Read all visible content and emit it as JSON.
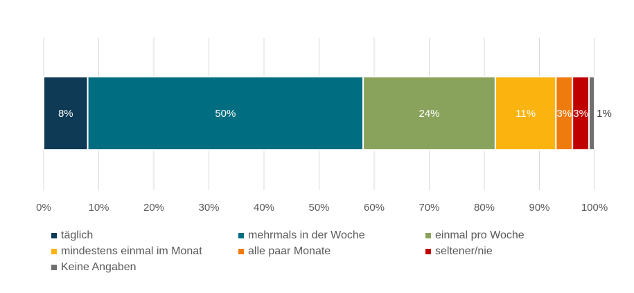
{
  "chart_data": {
    "type": "bar",
    "orientation": "horizontal",
    "stacked": true,
    "xlim": [
      0,
      100
    ],
    "x_ticks": [
      "0%",
      "10%",
      "20%",
      "30%",
      "40%",
      "50%",
      "60%",
      "70%",
      "80%",
      "90%",
      "100%"
    ],
    "grid": "vertical",
    "legend_position": "bottom",
    "series": [
      {
        "name": "täglich",
        "value": 8,
        "label": "8%",
        "color": "#0e3a55"
      },
      {
        "name": "mehrmals in der Woche",
        "value": 50,
        "label": "50%",
        "color": "#006e80"
      },
      {
        "name": "einmal pro Woche",
        "value": 24,
        "label": "24%",
        "color": "#8aa35c"
      },
      {
        "name": "mindestens einmal im Monat",
        "value": 11,
        "label": "11%",
        "color": "#fbb40f"
      },
      {
        "name": "alle paar Monate",
        "value": 3,
        "label": "3%",
        "color": "#ef7a0e"
      },
      {
        "name": "seltener/nie",
        "value": 3,
        "label": "3%",
        "color": "#c00000"
      },
      {
        "name": "Keine Angaben",
        "value": 1,
        "label": "1%",
        "color": "#6f6f6f"
      }
    ]
  }
}
